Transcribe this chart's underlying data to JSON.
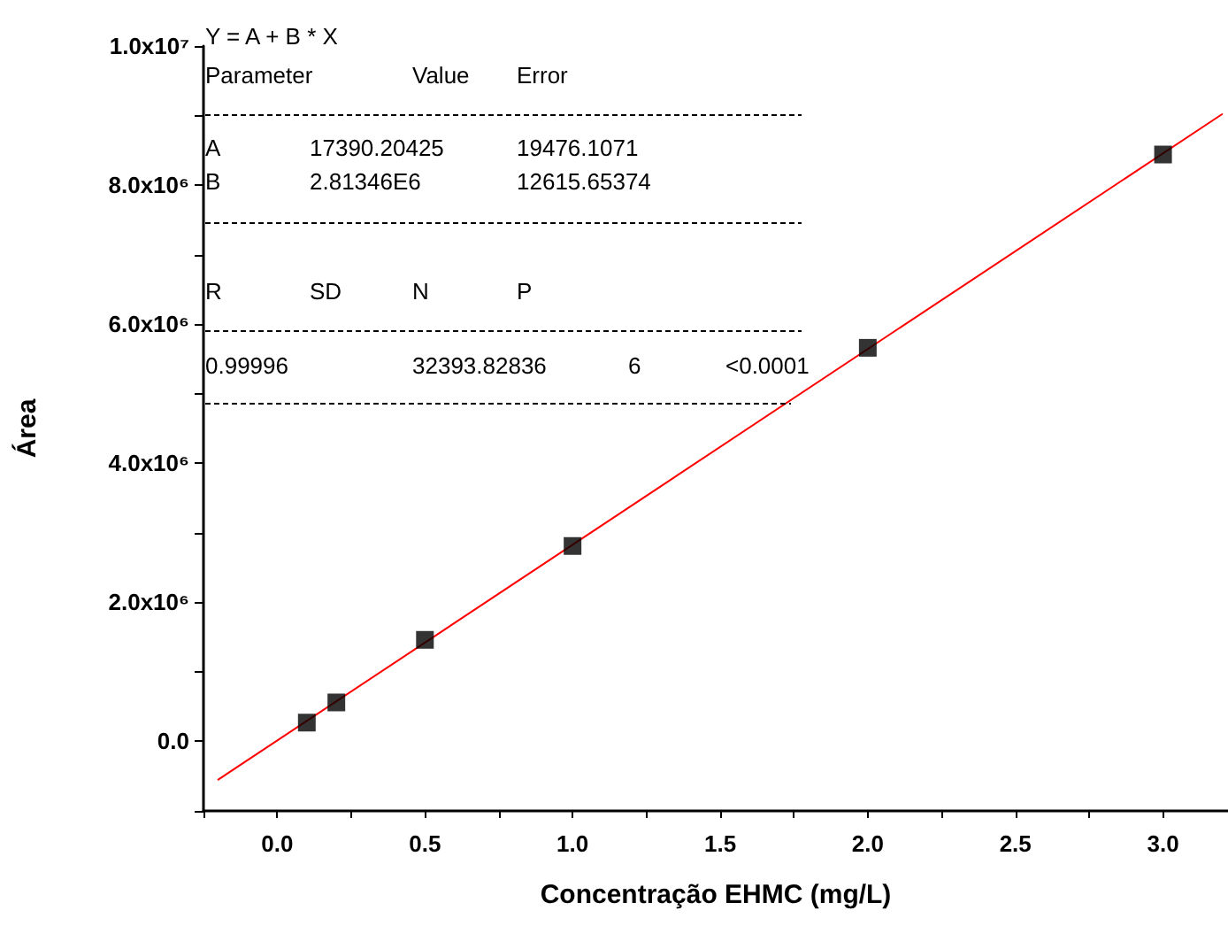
{
  "chart_data": {
    "type": "scatter",
    "xlabel": "Concentração EHMC (mg/L)",
    "ylabel": "Área",
    "x": [
      0.1,
      0.2,
      0.5,
      1.0,
      2.0,
      3.0
    ],
    "series": [
      {
        "color": "#000000",
        "marker": "square",
        "values": [
          270000,
          560000,
          1460000,
          2810000,
          5660000,
          8440000
        ]
      },
      {
        "type": "line",
        "color": "#ff0000",
        "marker": "none",
        "line_style": "solid",
        "x": [
          -0.2,
          3.2
        ],
        "values": [
          -550000,
          9020000
        ]
      }
    ],
    "xlim": [
      -0.25,
      3.22
    ],
    "xticks": [
      {
        "value": -0.25,
        "label": null
      },
      {
        "value": 0,
        "label": "0.0"
      },
      {
        "value": 0.25,
        "label": null
      },
      0.5,
      {
        "value": 0.75,
        "label": null
      },
      {
        "value": 1,
        "label": "1.0"
      },
      {
        "value": 1.25,
        "label": null
      },
      1.5,
      {
        "value": 1.75,
        "label": null
      },
      {
        "value": 2,
        "label": "2.0"
      },
      {
        "value": 2.25,
        "label": null
      },
      2.5,
      {
        "value": 2.75,
        "label": null
      },
      {
        "value": 3,
        "label": "3.0"
      }
    ],
    "ylim": [
      -1000000,
      10000000
    ],
    "yticks": [
      {
        "value": -1000000,
        "label": null
      },
      {
        "value": 0,
        "label": "0.0"
      },
      {
        "value": 1000000,
        "label": null
      },
      {
        "value": 2000000,
        "label": "2.0x10⁶"
      },
      {
        "value": 3000000,
        "label": null
      },
      {
        "value": 4000000,
        "label": "4.0x10⁶"
      },
      {
        "value": 5000000,
        "label": null
      },
      {
        "value": 6000000,
        "label": "6.0x10⁶"
      },
      {
        "value": 7000000,
        "label": null
      },
      {
        "value": 8000000,
        "label": "8.0x10⁶"
      },
      {
        "value": 9000000,
        "label": null
      },
      {
        "value": 10000000,
        "label": "1.0x10⁷"
      }
    ],
    "grid": false,
    "annotations": [
      "Y = A + B * X",
      "Parameter",
      "Value",
      "Error",
      "A",
      "17390.20425",
      "19476.1071",
      "B",
      "2.81346E6",
      "12615.65374",
      "R",
      "SD",
      "N",
      "P",
      "0.99996",
      "32393.82836",
      "6",
      "<0.0001"
    ]
  }
}
